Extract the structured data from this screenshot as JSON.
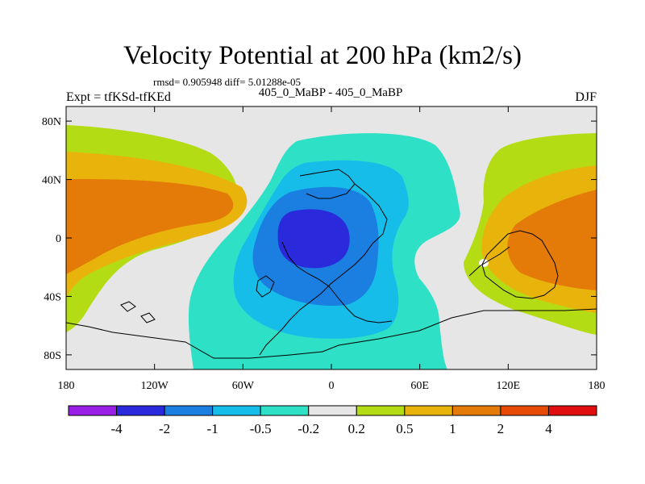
{
  "chart_data": {
    "type": "heatmap",
    "title": "Velocity Potential at 200 hPa (km2/s)",
    "stats_text": "rmsd= 0.905948 diff= 5.01288e-05",
    "subtitle": "405_0_MaBP - 405_0_MaBP",
    "left_label": "Expt = tfKSd-tfKEd",
    "right_label": "DJF",
    "x_ticks": [
      {
        "label": "180",
        "value": -180
      },
      {
        "label": "120W",
        "value": -120
      },
      {
        "label": "60W",
        "value": -60
      },
      {
        "label": "0",
        "value": 0
      },
      {
        "label": "60E",
        "value": 60
      },
      {
        "label": "120E",
        "value": 120
      },
      {
        "label": "180",
        "value": 180
      }
    ],
    "y_ticks": [
      {
        "label": "80N",
        "value": 80
      },
      {
        "label": "40N",
        "value": 40
      },
      {
        "label": "0",
        "value": 0
      },
      {
        "label": "40S",
        "value": -40
      },
      {
        "label": "80S",
        "value": -80
      }
    ],
    "xlim": [
      -180,
      180
    ],
    "ylim": [
      -90,
      90
    ],
    "colorbar": {
      "labels": [
        "-4",
        "-2",
        "-1",
        "-0.5",
        "-0.2",
        "0.2",
        "0.5",
        "1",
        "2",
        "4"
      ],
      "colors": [
        "#9a1fe6",
        "#2a2adc",
        "#1a7fe0",
        "#16bde8",
        "#2de0c6",
        "#e6e6e6",
        "#b4dc14",
        "#e8b40c",
        "#e47a08",
        "#e64a04",
        "#e00e0e"
      ]
    },
    "fields": [
      {
        "name": "gray",
        "centers": [],
        "color": "#e6e6e6"
      }
    ]
  }
}
